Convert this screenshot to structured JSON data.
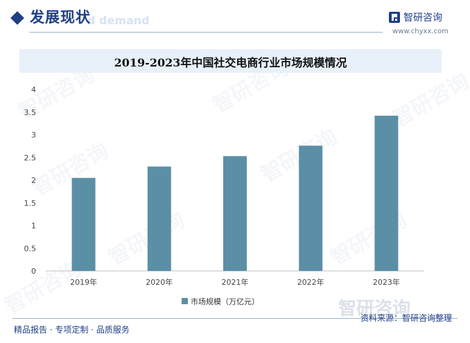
{
  "header": {
    "title": "发展现状",
    "ghost_text": "d demand"
  },
  "brand": {
    "name": "智研咨询",
    "url": "www.chyxx.com"
  },
  "watermark": {
    "text": "智研咨询"
  },
  "chart_data": {
    "type": "bar",
    "title": "2019-2023年中国社交电商行业市场规模情况",
    "categories": [
      "2019年",
      "2020年",
      "2021年",
      "2022年",
      "2023年"
    ],
    "series": [
      {
        "name": "市场规模（万亿元）",
        "values": [
          2.05,
          2.3,
          2.53,
          2.76,
          3.42
        ]
      }
    ],
    "ylim": [
      0,
      4
    ],
    "yticks": [
      "0",
      "0.5",
      "1",
      "1.5",
      "2",
      "2.5",
      "3",
      "3.5",
      "4"
    ],
    "grid": false,
    "legend": "bottom",
    "bar_color": "#5b8fa6"
  },
  "footer": {
    "left": "精品报告 · 专项定制 · 品质服务",
    "right": "资料来源：智研咨询整理"
  }
}
